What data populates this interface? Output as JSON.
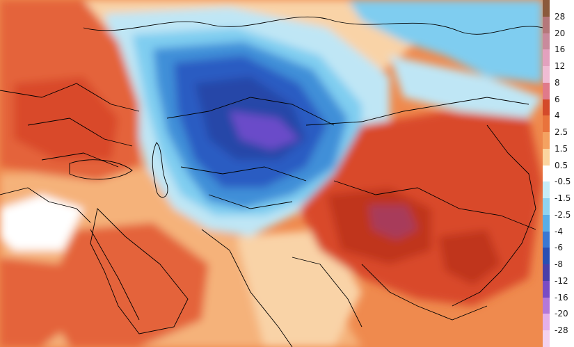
{
  "map": {
    "colors": {
      "deep_red": "#c0361e",
      "red": "#d9492a",
      "orange_red": "#e4643a",
      "orange": "#ef8a4e",
      "light_orange": "#f5b27a",
      "peach": "#f9d3a7",
      "white": "#ffffff",
      "light_blue": "#bfe6f5",
      "sky_blue": "#7fcdf0",
      "blue": "#3f8fd8",
      "dark_blue": "#2a5cc2",
      "navy": "#2746a8",
      "purple": "#6a4bc9",
      "magenta_red": "#a83a5a",
      "border": "#000000"
    }
  },
  "legend": {
    "labels": [
      "28",
      "20",
      "16",
      "12",
      "8",
      "6",
      "4",
      "2.5",
      "1.5",
      "0.5",
      "-0.5",
      "-1.5",
      "-2.5",
      "-4",
      "-6",
      "-8",
      "-12",
      "-16",
      "-20",
      "-28"
    ],
    "colors": [
      "#8b5a3c",
      "#b5777a",
      "#c98a9c",
      "#e3a1be",
      "#f0bcd4",
      "#e07a8a",
      "#d44a2a",
      "#e9733c",
      "#f4a261",
      "#fbd49f",
      "#ffffff",
      "#c6ecf7",
      "#8fd3f0",
      "#5aaee6",
      "#3a78d2",
      "#2a4fb2",
      "#4a3fa8",
      "#7a4cc4",
      "#b478d8",
      "#e4b0e8",
      "#f3d2ee"
    ]
  }
}
